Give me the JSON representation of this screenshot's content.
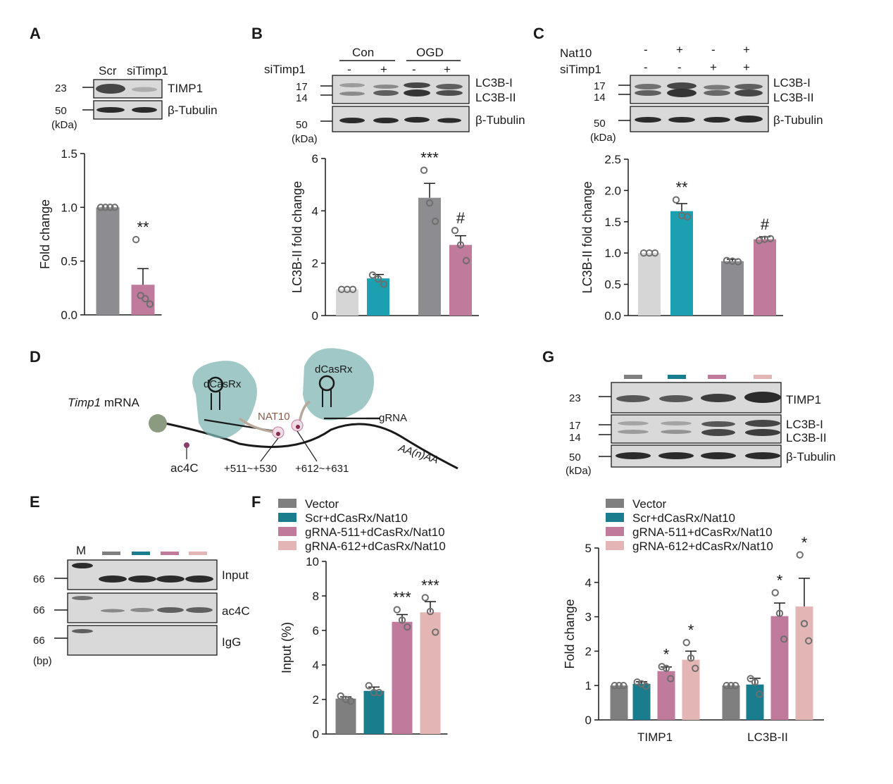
{
  "panels": {
    "A": {
      "label": "A",
      "lanes": [
        "Scr",
        "siTimp1"
      ],
      "markers": [
        "23",
        "50"
      ],
      "unit": "(kDa)",
      "blots": [
        "TIMP1",
        "β-Tubulin"
      ]
    },
    "B": {
      "label": "B",
      "groups": [
        "Con",
        "OGD"
      ],
      "row_label": "siTimp1",
      "signs": [
        "-",
        "+",
        "-",
        "+"
      ],
      "markers": [
        "17",
        "14",
        "50"
      ],
      "unit": "(kDa)",
      "blots": [
        "LC3B-I",
        "LC3B-II",
        "β-Tubulin"
      ]
    },
    "C": {
      "label": "C",
      "rows": [
        {
          "label": "Nat10",
          "signs": [
            "-",
            "+",
            "-",
            "+"
          ]
        },
        {
          "label": "siTimp1",
          "signs": [
            "-",
            "-",
            "+",
            "+"
          ]
        }
      ],
      "markers": [
        "17",
        "14",
        "50"
      ],
      "unit": "(kDa)",
      "blots": [
        "LC3B-I",
        "LC3B-II",
        "β-Tubulin"
      ]
    },
    "D": {
      "label": "D",
      "mrna_italic": "Timp1",
      "mrna_text": " mRNA",
      "protein_left": "dCasRx",
      "protein_right": "dCasRx",
      "enzyme": "NAT10",
      "grna": "gRNA",
      "mark": "ac4C",
      "site1": "+511~+530",
      "site2": "+612~+631",
      "tail": "AA(n)AA"
    },
    "E": {
      "label": "E",
      "ladder": "M",
      "lane_colors": [
        "#7f7f7f",
        "#1a7d8e",
        "#c07a9c",
        "#e3b5b5"
      ],
      "rows": [
        "Input",
        "ac4C",
        "IgG"
      ],
      "markers": [
        "66",
        "66",
        "66"
      ],
      "unit": "(bp)"
    },
    "F": {
      "label": "F"
    },
    "G": {
      "label": "G",
      "lane_colors": [
        "#7f7f7f",
        "#1a7d8e",
        "#c07a9c",
        "#e3b5b5"
      ],
      "markers": [
        "23",
        "17",
        "14",
        "50"
      ],
      "unit": "(kDa)",
      "blots": [
        "TIMP1",
        "LC3B-I",
        "LC3B-II",
        "β-Tubulin"
      ]
    }
  },
  "legend": {
    "items": [
      "Vector",
      "Scr+dCasRx/Nat10",
      "gRNA-511+dCasRx/Nat10",
      "gRNA-612+dCasRx/Nat10"
    ],
    "colors": [
      "#7f7f7f",
      "#1a7d8e",
      "#c07a9c",
      "#e3b5b5"
    ]
  },
  "chart_data": [
    {
      "id": "A",
      "type": "bar",
      "categories": [
        "Scr",
        "siTimp1"
      ],
      "values": [
        1.0,
        0.28
      ],
      "errors": [
        0,
        0.15
      ],
      "points": [
        [
          1.0,
          1.0,
          1.0,
          1.0
        ],
        [
          0.7,
          0.18,
          0.15,
          0.1
        ]
      ],
      "colors": [
        "#8c8c91",
        "#c07a9c"
      ],
      "significance": [
        "",
        "**"
      ],
      "ylabel": "Fold change",
      "ylim": [
        0,
        1.5
      ],
      "yticks": [
        "0.0",
        "0.5",
        "1.0",
        "1.5"
      ]
    },
    {
      "id": "B",
      "type": "bar",
      "categories": [
        "Con -",
        "Con +",
        "OGD -",
        "OGD +"
      ],
      "values": [
        1.0,
        1.42,
        4.5,
        2.7
      ],
      "errors": [
        0,
        0.15,
        0.55,
        0.35
      ],
      "points": [
        [
          1.0,
          1.0,
          1.0
        ],
        [
          1.55,
          1.4,
          1.2
        ],
        [
          5.55,
          4.3,
          3.6
        ],
        [
          3.25,
          2.7,
          2.1
        ]
      ],
      "colors": [
        "#d6d6d6",
        "#1aa0b0",
        "#8c8c91",
        "#c07a9c"
      ],
      "significance": [
        "",
        "",
        "***",
        "#"
      ],
      "ylabel": "LC3B-II fold change",
      "ylim": [
        0,
        6
      ],
      "yticks": [
        "0",
        "2",
        "4",
        "6"
      ]
    },
    {
      "id": "C",
      "type": "bar",
      "categories": [
        "-/-",
        "Nat10",
        "siTimp1",
        "Nat10+siTimp1"
      ],
      "values": [
        1.0,
        1.67,
        0.87,
        1.22
      ],
      "errors": [
        0,
        0.12,
        0.03,
        0.04
      ],
      "points": [
        [
          1.0,
          1.0,
          1.0
        ],
        [
          1.85,
          1.6,
          1.58
        ],
        [
          0.88,
          0.87,
          0.86
        ],
        [
          1.2,
          1.22,
          1.23
        ]
      ],
      "colors": [
        "#d6d6d6",
        "#1aa0b0",
        "#8c8c91",
        "#c07a9c"
      ],
      "significance": [
        "",
        "**",
        "",
        "#"
      ],
      "ylabel": "LC3B-II fold change",
      "ylim": [
        0,
        2.5
      ],
      "yticks": [
        "0.0",
        "0.5",
        "1.0",
        "1.5",
        "2.0",
        "2.5"
      ]
    },
    {
      "id": "F",
      "type": "bar",
      "categories": [
        "Vector",
        "Scr+dCasRx/Nat10",
        "gRNA-511+dCasRx/Nat10",
        "gRNA-612+dCasRx/Nat10"
      ],
      "values": [
        2.05,
        2.5,
        6.5,
        7.05
      ],
      "errors": [
        0.1,
        0.22,
        0.42,
        0.62
      ],
      "points": [
        [
          2.2,
          2.0,
          1.9
        ],
        [
          2.8,
          2.4,
          2.4
        ],
        [
          7.2,
          6.6,
          6.2
        ],
        [
          7.9,
          7.1,
          5.9
        ]
      ],
      "colors": [
        "#7f7f7f",
        "#1a7d8e",
        "#c07a9c",
        "#e3b5b5"
      ],
      "significance": [
        "",
        "",
        "***",
        "***"
      ],
      "ylabel": "Input (%)",
      "ylim": [
        0,
        10
      ],
      "yticks": [
        "0",
        "2",
        "4",
        "6",
        "8",
        "10"
      ]
    },
    {
      "id": "G",
      "type": "bar",
      "categories": [
        "TIMP1",
        "LC3B-II"
      ],
      "series": [
        {
          "name": "Vector",
          "values": [
            1.0,
            1.0
          ],
          "errors": [
            0,
            0
          ],
          "points": [
            [
              1.0,
              1.0,
              1.0
            ],
            [
              1.0,
              1.0,
              1.0
            ]
          ]
        },
        {
          "name": "Scr+dCasRx/Nat10",
          "values": [
            1.05,
            1.03
          ],
          "errors": [
            0.06,
            0.18
          ],
          "points": [
            [
              1.1,
              1.05,
              0.98
            ],
            [
              1.2,
              1.1,
              0.75
            ]
          ]
        },
        {
          "name": "gRNA-511+dCasRx/Nat10",
          "values": [
            1.42,
            3.02
          ],
          "errors": [
            0.12,
            0.38
          ],
          "points": [
            [
              1.55,
              1.5,
              1.2
            ],
            [
              3.7,
              3.1,
              2.35
            ]
          ]
        },
        {
          "name": "gRNA-612+dCasRx/Nat10",
          "values": [
            1.75,
            3.3
          ],
          "errors": [
            0.25,
            0.82
          ],
          "points": [
            [
              2.25,
              1.8,
              1.5
            ],
            [
              4.8,
              2.8,
              2.3
            ]
          ]
        }
      ],
      "colors": [
        "#7f7f7f",
        "#1a7d8e",
        "#c07a9c",
        "#e3b5b5"
      ],
      "significance": [
        [
          "",
          "",
          "*",
          "*"
        ],
        [
          "",
          "",
          "*",
          "*"
        ]
      ],
      "ylabel": "Fold change",
      "ylim": [
        0,
        5
      ],
      "yticks": [
        "0",
        "1",
        "2",
        "3",
        "4",
        "5"
      ]
    }
  ]
}
